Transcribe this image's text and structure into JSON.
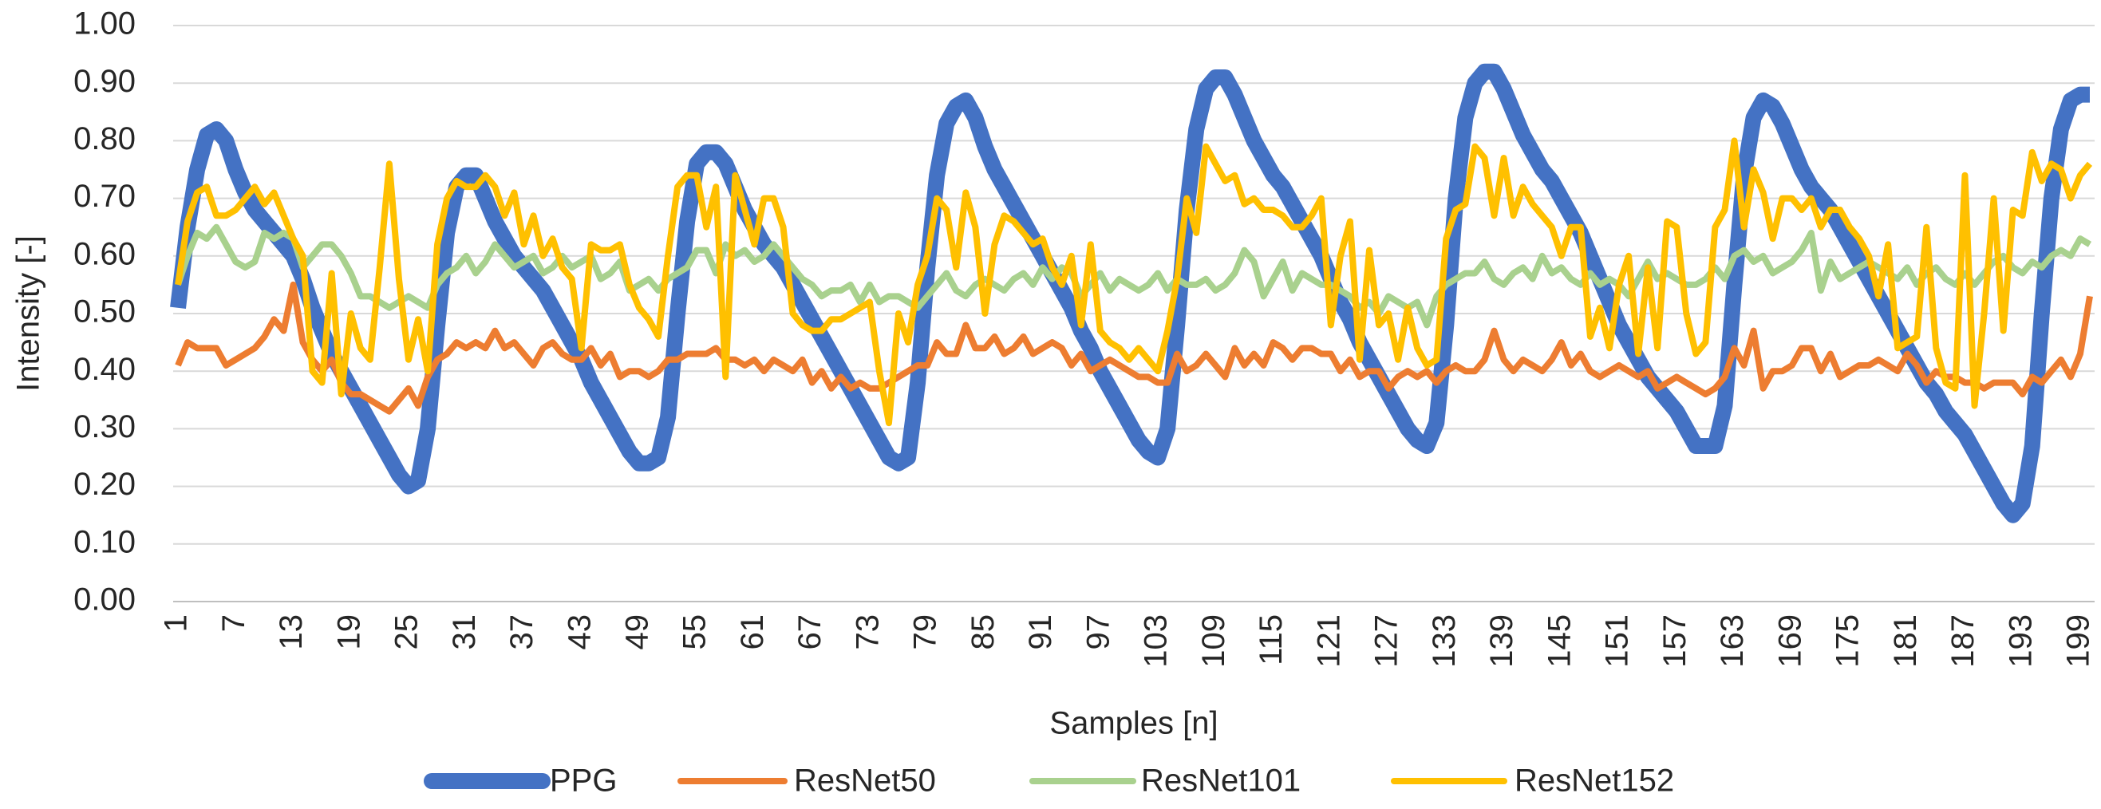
{
  "chart_data": {
    "type": "line",
    "x_label": "Samples [n]",
    "y_label": "Intensity [-]",
    "x": [
      1,
      2,
      3,
      4,
      5,
      6,
      7,
      8,
      9,
      10,
      11,
      12,
      13,
      14,
      15,
      16,
      17,
      18,
      19,
      20,
      21,
      22,
      23,
      24,
      25,
      26,
      27,
      28,
      29,
      30,
      31,
      32,
      33,
      34,
      35,
      36,
      37,
      38,
      39,
      40,
      41,
      42,
      43,
      44,
      45,
      46,
      47,
      48,
      49,
      50,
      51,
      52,
      53,
      54,
      55,
      56,
      57,
      58,
      59,
      60,
      61,
      62,
      63,
      64,
      65,
      66,
      67,
      68,
      69,
      70,
      71,
      72,
      73,
      74,
      75,
      76,
      77,
      78,
      79,
      80,
      81,
      82,
      83,
      84,
      85,
      86,
      87,
      88,
      89,
      90,
      91,
      92,
      93,
      94,
      95,
      96,
      97,
      98,
      99,
      100,
      101,
      102,
      103,
      104,
      105,
      106,
      107,
      108,
      109,
      110,
      111,
      112,
      113,
      114,
      115,
      116,
      117,
      118,
      119,
      120,
      121,
      122,
      123,
      124,
      125,
      126,
      127,
      128,
      129,
      130,
      131,
      132,
      133,
      134,
      135,
      136,
      137,
      138,
      139,
      140,
      141,
      142,
      143,
      144,
      145,
      146,
      147,
      148,
      149,
      150,
      151,
      152,
      153,
      154,
      155,
      156,
      157,
      158,
      159,
      160,
      161,
      162,
      163,
      164,
      165,
      166,
      167,
      168,
      169,
      170,
      171,
      172,
      173,
      174,
      175,
      176,
      177,
      178,
      179,
      180,
      181,
      182,
      183,
      184,
      185,
      186,
      187,
      188,
      189,
      190,
      191,
      192,
      193,
      194,
      195,
      196,
      197,
      198,
      199,
      200
    ],
    "xlim": [
      0.5,
      200.5
    ],
    "xticks": [
      1,
      7,
      13,
      19,
      25,
      31,
      37,
      43,
      49,
      55,
      61,
      67,
      73,
      79,
      85,
      91,
      97,
      103,
      109,
      115,
      121,
      127,
      133,
      139,
      145,
      151,
      157,
      163,
      169,
      175,
      181,
      187,
      193,
      199
    ],
    "ylim": [
      0,
      1
    ],
    "yticks": [
      {
        "value": 0,
        "label": "0.00"
      },
      {
        "value": 0.1,
        "label": "0.10"
      },
      {
        "value": 0.2,
        "label": "0.20"
      },
      {
        "value": 0.3,
        "label": "0.30"
      },
      {
        "value": 0.4,
        "label": "0.40"
      },
      {
        "value": 0.5,
        "label": "0.50"
      },
      {
        "value": 0.6,
        "label": "0.60"
      },
      {
        "value": 0.7,
        "label": "0.70"
      },
      {
        "value": 0.8,
        "label": "0.80"
      },
      {
        "value": 0.9,
        "label": "0.90"
      },
      {
        "value": 1,
        "label": "1.00"
      }
    ],
    "grid": true,
    "legend": "bottom",
    "series": [
      {
        "name": "PPG",
        "color": "#4472C4",
        "values": [
          0.51,
          0.65,
          0.75,
          0.81,
          0.82,
          0.8,
          0.75,
          0.71,
          0.68,
          0.66,
          0.64,
          0.62,
          0.6,
          0.56,
          0.51,
          0.47,
          0.43,
          0.4,
          0.37,
          0.34,
          0.31,
          0.28,
          0.25,
          0.22,
          0.2,
          0.21,
          0.3,
          0.48,
          0.64,
          0.72,
          0.74,
          0.74,
          0.7,
          0.66,
          0.63,
          0.6,
          0.58,
          0.56,
          0.54,
          0.51,
          0.48,
          0.45,
          0.42,
          0.38,
          0.35,
          0.32,
          0.29,
          0.26,
          0.24,
          0.24,
          0.25,
          0.32,
          0.5,
          0.66,
          0.76,
          0.78,
          0.78,
          0.76,
          0.72,
          0.68,
          0.65,
          0.62,
          0.6,
          0.58,
          0.55,
          0.52,
          0.49,
          0.46,
          0.43,
          0.4,
          0.37,
          0.34,
          0.31,
          0.28,
          0.25,
          0.24,
          0.25,
          0.38,
          0.58,
          0.74,
          0.83,
          0.86,
          0.87,
          0.84,
          0.79,
          0.75,
          0.72,
          0.69,
          0.66,
          0.63,
          0.6,
          0.57,
          0.54,
          0.51,
          0.47,
          0.44,
          0.4,
          0.37,
          0.34,
          0.31,
          0.28,
          0.26,
          0.25,
          0.3,
          0.48,
          0.68,
          0.82,
          0.89,
          0.91,
          0.91,
          0.88,
          0.84,
          0.8,
          0.77,
          0.74,
          0.72,
          0.69,
          0.66,
          0.63,
          0.6,
          0.56,
          0.52,
          0.49,
          0.45,
          0.42,
          0.39,
          0.36,
          0.33,
          0.3,
          0.28,
          0.27,
          0.31,
          0.48,
          0.7,
          0.84,
          0.9,
          0.92,
          0.92,
          0.89,
          0.85,
          0.81,
          0.78,
          0.75,
          0.73,
          0.7,
          0.67,
          0.64,
          0.6,
          0.56,
          0.52,
          0.48,
          0.45,
          0.42,
          0.39,
          0.37,
          0.35,
          0.33,
          0.3,
          0.27,
          0.27,
          0.27,
          0.34,
          0.55,
          0.74,
          0.84,
          0.87,
          0.86,
          0.83,
          0.79,
          0.75,
          0.72,
          0.7,
          0.68,
          0.65,
          0.62,
          0.59,
          0.56,
          0.53,
          0.5,
          0.47,
          0.44,
          0.41,
          0.38,
          0.36,
          0.33,
          0.31,
          0.29,
          0.26,
          0.23,
          0.2,
          0.17,
          0.15,
          0.17,
          0.27,
          0.5,
          0.7,
          0.82,
          0.87,
          0.88,
          0.88
        ]
      },
      {
        "name": "ResNet50",
        "color": "#ED7D31",
        "values": [
          0.41,
          0.45,
          0.44,
          0.44,
          0.44,
          0.41,
          0.42,
          0.43,
          0.44,
          0.46,
          0.49,
          0.47,
          0.55,
          0.45,
          0.42,
          0.4,
          0.42,
          0.38,
          0.36,
          0.36,
          0.35,
          0.34,
          0.33,
          0.35,
          0.37,
          0.34,
          0.39,
          0.42,
          0.43,
          0.45,
          0.44,
          0.45,
          0.44,
          0.47,
          0.44,
          0.45,
          0.43,
          0.41,
          0.44,
          0.45,
          0.43,
          0.42,
          0.42,
          0.44,
          0.41,
          0.43,
          0.39,
          0.4,
          0.4,
          0.39,
          0.4,
          0.42,
          0.42,
          0.43,
          0.43,
          0.43,
          0.44,
          0.42,
          0.42,
          0.41,
          0.42,
          0.4,
          0.42,
          0.41,
          0.4,
          0.42,
          0.38,
          0.4,
          0.37,
          0.39,
          0.37,
          0.38,
          0.37,
          0.37,
          0.38,
          0.39,
          0.4,
          0.41,
          0.41,
          0.45,
          0.43,
          0.43,
          0.48,
          0.44,
          0.44,
          0.46,
          0.43,
          0.44,
          0.46,
          0.43,
          0.44,
          0.45,
          0.44,
          0.41,
          0.43,
          0.4,
          0.41,
          0.42,
          0.41,
          0.4,
          0.39,
          0.39,
          0.38,
          0.38,
          0.43,
          0.4,
          0.41,
          0.43,
          0.41,
          0.39,
          0.44,
          0.41,
          0.43,
          0.41,
          0.45,
          0.44,
          0.42,
          0.44,
          0.44,
          0.43,
          0.43,
          0.4,
          0.42,
          0.39,
          0.4,
          0.4,
          0.37,
          0.39,
          0.4,
          0.39,
          0.4,
          0.38,
          0.4,
          0.41,
          0.4,
          0.4,
          0.42,
          0.47,
          0.42,
          0.4,
          0.42,
          0.41,
          0.4,
          0.42,
          0.45,
          0.41,
          0.43,
          0.4,
          0.39,
          0.4,
          0.41,
          0.4,
          0.39,
          0.4,
          0.37,
          0.38,
          0.39,
          0.38,
          0.37,
          0.36,
          0.37,
          0.39,
          0.44,
          0.41,
          0.47,
          0.37,
          0.4,
          0.4,
          0.41,
          0.44,
          0.44,
          0.4,
          0.43,
          0.39,
          0.4,
          0.41,
          0.41,
          0.42,
          0.41,
          0.4,
          0.43,
          0.41,
          0.38,
          0.4,
          0.39,
          0.39,
          0.38,
          0.38,
          0.37,
          0.38,
          0.38,
          0.38,
          0.36,
          0.39,
          0.38,
          0.4,
          0.42,
          0.39,
          0.43,
          0.53
        ]
      },
      {
        "name": "ResNet101",
        "color": "#A9D18E",
        "values": [
          0.55,
          0.6,
          0.64,
          0.63,
          0.65,
          0.62,
          0.59,
          0.58,
          0.59,
          0.64,
          0.63,
          0.64,
          0.63,
          0.58,
          0.6,
          0.62,
          0.62,
          0.6,
          0.57,
          0.53,
          0.53,
          0.52,
          0.51,
          0.52,
          0.53,
          0.52,
          0.51,
          0.55,
          0.57,
          0.58,
          0.6,
          0.57,
          0.59,
          0.62,
          0.6,
          0.58,
          0.59,
          0.6,
          0.57,
          0.58,
          0.6,
          0.58,
          0.59,
          0.6,
          0.56,
          0.57,
          0.59,
          0.54,
          0.55,
          0.56,
          0.54,
          0.56,
          0.57,
          0.58,
          0.61,
          0.61,
          0.57,
          0.62,
          0.6,
          0.61,
          0.59,
          0.6,
          0.62,
          0.6,
          0.58,
          0.56,
          0.55,
          0.53,
          0.54,
          0.54,
          0.55,
          0.52,
          0.55,
          0.52,
          0.53,
          0.53,
          0.52,
          0.51,
          0.53,
          0.55,
          0.57,
          0.54,
          0.53,
          0.55,
          0.56,
          0.55,
          0.54,
          0.56,
          0.57,
          0.55,
          0.58,
          0.56,
          0.58,
          0.57,
          0.53,
          0.55,
          0.57,
          0.54,
          0.56,
          0.55,
          0.54,
          0.55,
          0.57,
          0.54,
          0.56,
          0.55,
          0.55,
          0.56,
          0.54,
          0.55,
          0.57,
          0.61,
          0.59,
          0.53,
          0.56,
          0.59,
          0.54,
          0.57,
          0.56,
          0.55,
          0.55,
          0.54,
          0.53,
          0.51,
          0.52,
          0.5,
          0.53,
          0.52,
          0.51,
          0.52,
          0.48,
          0.53,
          0.55,
          0.56,
          0.57,
          0.57,
          0.59,
          0.56,
          0.55,
          0.57,
          0.58,
          0.56,
          0.6,
          0.57,
          0.58,
          0.56,
          0.55,
          0.57,
          0.55,
          0.56,
          0.55,
          0.53,
          0.56,
          0.59,
          0.56,
          0.57,
          0.56,
          0.55,
          0.55,
          0.56,
          0.58,
          0.56,
          0.6,
          0.61,
          0.59,
          0.6,
          0.57,
          0.58,
          0.59,
          0.61,
          0.64,
          0.54,
          0.59,
          0.56,
          0.57,
          0.58,
          0.59,
          0.58,
          0.57,
          0.56,
          0.58,
          0.55,
          0.57,
          0.58,
          0.56,
          0.55,
          0.57,
          0.55,
          0.57,
          0.59,
          0.6,
          0.58,
          0.57,
          0.59,
          0.58,
          0.6,
          0.61,
          0.6,
          0.63,
          0.62
        ]
      },
      {
        "name": "ResNet152",
        "color": "#FFC000",
        "values": [
          0.55,
          0.66,
          0.71,
          0.72,
          0.67,
          0.67,
          0.68,
          0.7,
          0.72,
          0.69,
          0.71,
          0.67,
          0.63,
          0.6,
          0.4,
          0.38,
          0.57,
          0.36,
          0.5,
          0.44,
          0.42,
          0.58,
          0.76,
          0.56,
          0.42,
          0.49,
          0.4,
          0.62,
          0.7,
          0.73,
          0.72,
          0.72,
          0.74,
          0.72,
          0.67,
          0.71,
          0.62,
          0.67,
          0.6,
          0.63,
          0.58,
          0.56,
          0.44,
          0.62,
          0.61,
          0.61,
          0.62,
          0.55,
          0.51,
          0.49,
          0.46,
          0.6,
          0.72,
          0.74,
          0.74,
          0.65,
          0.72,
          0.39,
          0.74,
          0.68,
          0.62,
          0.7,
          0.7,
          0.65,
          0.5,
          0.48,
          0.47,
          0.47,
          0.49,
          0.49,
          0.5,
          0.51,
          0.52,
          0.4,
          0.31,
          0.5,
          0.45,
          0.55,
          0.6,
          0.7,
          0.68,
          0.58,
          0.71,
          0.65,
          0.5,
          0.62,
          0.67,
          0.66,
          0.64,
          0.62,
          0.63,
          0.58,
          0.55,
          0.6,
          0.48,
          0.62,
          0.47,
          0.45,
          0.44,
          0.42,
          0.44,
          0.42,
          0.4,
          0.47,
          0.56,
          0.7,
          0.64,
          0.79,
          0.76,
          0.73,
          0.74,
          0.69,
          0.7,
          0.68,
          0.68,
          0.67,
          0.65,
          0.65,
          0.67,
          0.7,
          0.48,
          0.6,
          0.66,
          0.42,
          0.61,
          0.48,
          0.5,
          0.42,
          0.51,
          0.44,
          0.41,
          0.42,
          0.63,
          0.68,
          0.69,
          0.79,
          0.77,
          0.67,
          0.77,
          0.67,
          0.72,
          0.69,
          0.67,
          0.65,
          0.6,
          0.65,
          0.65,
          0.46,
          0.51,
          0.44,
          0.55,
          0.6,
          0.43,
          0.58,
          0.44,
          0.66,
          0.65,
          0.5,
          0.43,
          0.45,
          0.65,
          0.68,
          0.8,
          0.65,
          0.75,
          0.71,
          0.63,
          0.7,
          0.7,
          0.68,
          0.7,
          0.65,
          0.68,
          0.68,
          0.65,
          0.63,
          0.6,
          0.53,
          0.62,
          0.44,
          0.45,
          0.46,
          0.65,
          0.44,
          0.38,
          0.37,
          0.74,
          0.34,
          0.5,
          0.7,
          0.47,
          0.68,
          0.67,
          0.78,
          0.73,
          0.76,
          0.75,
          0.7,
          0.74,
          0.76
        ]
      }
    ]
  }
}
